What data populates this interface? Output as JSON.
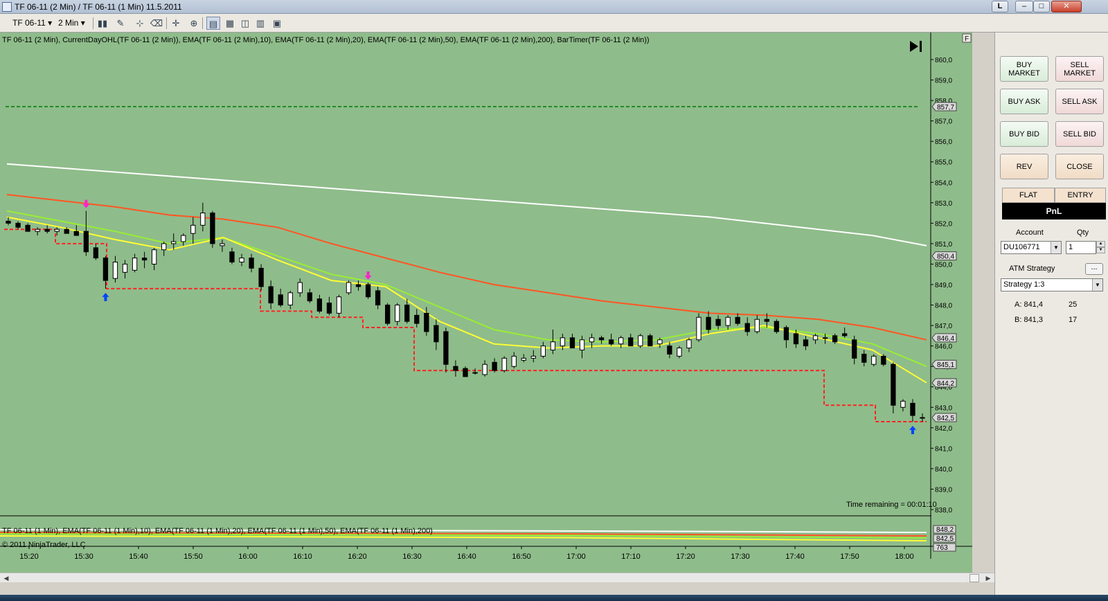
{
  "window": {
    "title": "TF 06-11 (2 Min) / TF 06-11 (1 Min)  11.5.2011",
    "lang_badge": "L",
    "btn_min": "–",
    "btn_max": "□",
    "btn_close": "✕"
  },
  "toolbar": {
    "instrument": "TF 06-11",
    "interval": "2 Min",
    "icons": [
      "bar-type-icon",
      "draw-tool-icon",
      "pin-icon",
      "clear-icon",
      "crosshair-icon",
      "zoom-icon",
      "chart-trader-icon",
      "data-box-icon",
      "strategies-icon",
      "properties-icon",
      "templates-icon"
    ]
  },
  "chart": {
    "indicator_label": "TF 06-11 (2 Min), CurrentDayOHL(TF 06-11 (2 Min)), EMA(TF 06-11 (2 Min),10), EMA(TF 06-11 (2 Min),20), EMA(TF 06-11 (2 Min),50), EMA(TF 06-11 (2 Min),200), BarTimer(TF 06-11 (2 Min))",
    "sub_label": "TF 06-11 (1 Min), EMA(TF 06-11 (1 Min),10), EMA(TF 06-11 (1 Min),20), EMA(TF 06-11 (1 Min),50), EMA(TF 06-11 (1 Min),200)",
    "copyright": "© 2011 NinjaTrader, LLC",
    "timer": "Time remaining = 00:01:10",
    "panel_flag": "F",
    "colors": {
      "background": "#8fbc8b",
      "ema10": "#ffff33",
      "ema20": "#99ee33",
      "ema50": "#ff5522",
      "ema200": "#ffffff",
      "day_high": "#228b22",
      "day_low": "#ff2222",
      "buy_arrow": "#0044ff",
      "sell_arrow": "#ff22cc"
    }
  },
  "chart_data": {
    "type": "candlestick",
    "y_axis": {
      "range": [
        837.5,
        860.5
      ],
      "ticks": [
        "860,0",
        "859,0",
        "858,0",
        "857,0",
        "856,0",
        "855,0",
        "854,0",
        "853,0",
        "852,0",
        "851,0",
        "850,0",
        "849,0",
        "848,0",
        "847,0",
        "846,0",
        "845,0",
        "844,0",
        "843,0",
        "842,0",
        "841,0",
        "840,0",
        "839,0",
        "838,0"
      ]
    },
    "price_markers": [
      {
        "label": "857,7",
        "value": 857.7
      },
      {
        "label": "850,4",
        "value": 850.4
      },
      {
        "label": "846,4",
        "value": 846.4
      },
      {
        "label": "845,1",
        "value": 845.1
      },
      {
        "label": "844,2",
        "value": 844.2
      },
      {
        "label": "842,5",
        "value": 842.5
      }
    ],
    "sub_markers": [
      {
        "label": "848,2"
      },
      {
        "label": "842,5"
      },
      {
        "label": "763"
      }
    ],
    "x_axis": {
      "ticks": [
        "15:20",
        "15:30",
        "15:40",
        "15:50",
        "16:00",
        "16:10",
        "16:20",
        "16:30",
        "16:40",
        "16:50",
        "17:00",
        "17:10",
        "17:20",
        "17:30",
        "17:40",
        "17:50",
        "18:00"
      ]
    },
    "series": [
      {
        "name": "EMA(TF 06-11 (2 Min),200)",
        "values": [
          854.9,
          854.7,
          854.5,
          854.3,
          854.1,
          853.9,
          853.7,
          853.5,
          853.3,
          853.1,
          852.9,
          852.7,
          852.5,
          852.3,
          852.0,
          851.7,
          851.4,
          850.9
        ]
      },
      {
        "name": "EMA(TF 06-11 (2 Min),50)",
        "values": [
          853.4,
          853.1,
          852.8,
          852.4,
          852.2,
          851.8,
          851.0,
          850.3,
          849.6,
          849.0,
          848.6,
          848.2,
          847.9,
          847.6,
          847.5,
          847.3,
          846.9,
          846.3
        ]
      },
      {
        "name": "EMA(TF 06-11 (2 Min),20)",
        "values": [
          852.6,
          852.1,
          851.6,
          851.0,
          851.3,
          850.4,
          849.5,
          849.0,
          847.9,
          846.8,
          846.3,
          846.2,
          846.3,
          846.8,
          846.9,
          846.6,
          846.1,
          845.0
        ]
      },
      {
        "name": "EMA(TF 06-11 (2 Min),10)",
        "values": [
          852.3,
          851.8,
          851.2,
          850.7,
          851.3,
          850.2,
          849.2,
          848.9,
          847.2,
          846.1,
          845.9,
          846.0,
          846.0,
          846.6,
          847.0,
          846.4,
          845.8,
          844.2
        ]
      },
      {
        "name": "CurrentDayHigh",
        "values": [
          857.7
        ]
      },
      {
        "name": "CurrentDayLow",
        "values": [
          851.7,
          851.0,
          848.8,
          848.8,
          848.8,
          847.7,
          847.4,
          846.9,
          844.8,
          844.8,
          844.8,
          844.8,
          844.8,
          844.8,
          844.8,
          844.8,
          843.1,
          842.3
        ]
      }
    ],
    "candles": [
      {
        "o": 852.1,
        "h": 852.3,
        "l": 851.9,
        "c": 852.0
      },
      {
        "o": 852.0,
        "h": 852.1,
        "l": 851.7,
        "c": 851.8
      },
      {
        "o": 851.9,
        "h": 852.0,
        "l": 851.6,
        "c": 851.6
      },
      {
        "o": 851.6,
        "h": 851.8,
        "l": 851.4,
        "c": 851.7
      },
      {
        "o": 851.7,
        "h": 851.9,
        "l": 851.5,
        "c": 851.6
      },
      {
        "o": 851.6,
        "h": 851.8,
        "l": 851.4,
        "c": 851.7
      },
      {
        "o": 851.7,
        "h": 851.8,
        "l": 851.5,
        "c": 851.5
      },
      {
        "o": 851.6,
        "h": 851.9,
        "l": 851.4,
        "c": 851.4
      },
      {
        "o": 851.6,
        "h": 852.6,
        "l": 850.4,
        "c": 850.6
      },
      {
        "o": 850.8,
        "h": 851.0,
        "l": 850.2,
        "c": 850.3
      },
      {
        "o": 850.3,
        "h": 850.4,
        "l": 848.8,
        "c": 849.2
      },
      {
        "o": 849.3,
        "h": 850.4,
        "l": 849.1,
        "c": 850.1
      },
      {
        "o": 849.6,
        "h": 850.2,
        "l": 849.3,
        "c": 850.0
      },
      {
        "o": 849.7,
        "h": 850.5,
        "l": 849.6,
        "c": 850.3
      },
      {
        "o": 850.3,
        "h": 850.6,
        "l": 849.8,
        "c": 850.2
      },
      {
        "o": 850.0,
        "h": 850.8,
        "l": 849.7,
        "c": 850.7
      },
      {
        "o": 850.7,
        "h": 851.1,
        "l": 850.4,
        "c": 851.0
      },
      {
        "o": 851.0,
        "h": 851.5,
        "l": 850.7,
        "c": 851.1
      },
      {
        "o": 851.1,
        "h": 851.5,
        "l": 850.9,
        "c": 851.4
      },
      {
        "o": 851.5,
        "h": 852.3,
        "l": 851.0,
        "c": 851.9
      },
      {
        "o": 851.9,
        "h": 853.0,
        "l": 851.6,
        "c": 852.5
      },
      {
        "o": 852.5,
        "h": 852.6,
        "l": 850.8,
        "c": 851.0
      },
      {
        "o": 850.9,
        "h": 851.2,
        "l": 850.6,
        "c": 851.0
      },
      {
        "o": 850.6,
        "h": 850.8,
        "l": 850.0,
        "c": 850.1
      },
      {
        "o": 850.1,
        "h": 850.5,
        "l": 849.9,
        "c": 850.3
      },
      {
        "o": 850.3,
        "h": 850.5,
        "l": 849.6,
        "c": 849.8
      },
      {
        "o": 849.8,
        "h": 850.0,
        "l": 848.7,
        "c": 848.9
      },
      {
        "o": 848.9,
        "h": 849.2,
        "l": 847.8,
        "c": 848.1
      },
      {
        "o": 848.5,
        "h": 848.8,
        "l": 847.9,
        "c": 848.0
      },
      {
        "o": 848.0,
        "h": 848.7,
        "l": 847.8,
        "c": 848.6
      },
      {
        "o": 848.6,
        "h": 849.3,
        "l": 848.4,
        "c": 849.1
      },
      {
        "o": 848.6,
        "h": 848.8,
        "l": 848.1,
        "c": 848.2
      },
      {
        "o": 848.3,
        "h": 848.5,
        "l": 847.6,
        "c": 847.7
      },
      {
        "o": 848.1,
        "h": 848.4,
        "l": 847.5,
        "c": 847.6
      },
      {
        "o": 847.6,
        "h": 848.5,
        "l": 847.4,
        "c": 848.4
      },
      {
        "o": 848.6,
        "h": 849.2,
        "l": 848.5,
        "c": 849.1
      },
      {
        "o": 849.0,
        "h": 849.2,
        "l": 848.7,
        "c": 848.9
      },
      {
        "o": 849.0,
        "h": 849.1,
        "l": 848.3,
        "c": 848.4
      },
      {
        "o": 848.7,
        "h": 848.9,
        "l": 847.8,
        "c": 848.0
      },
      {
        "o": 848.0,
        "h": 848.1,
        "l": 847.0,
        "c": 847.1
      },
      {
        "o": 847.2,
        "h": 848.1,
        "l": 847.0,
        "c": 848.0
      },
      {
        "o": 848.0,
        "h": 848.3,
        "l": 847.1,
        "c": 847.2
      },
      {
        "o": 847.5,
        "h": 847.8,
        "l": 846.9,
        "c": 847.1
      },
      {
        "o": 847.6,
        "h": 847.9,
        "l": 846.5,
        "c": 846.7
      },
      {
        "o": 847.0,
        "h": 847.3,
        "l": 845.8,
        "c": 846.2
      },
      {
        "o": 846.7,
        "h": 846.9,
        "l": 844.7,
        "c": 845.1
      },
      {
        "o": 845.0,
        "h": 845.3,
        "l": 844.5,
        "c": 844.8
      },
      {
        "o": 844.9,
        "h": 845.0,
        "l": 844.5,
        "c": 844.5
      },
      {
        "o": 844.7,
        "h": 844.9,
        "l": 844.6,
        "c": 844.7
      },
      {
        "o": 844.6,
        "h": 845.3,
        "l": 844.5,
        "c": 845.1
      },
      {
        "o": 845.2,
        "h": 845.4,
        "l": 844.7,
        "c": 844.8
      },
      {
        "o": 844.8,
        "h": 845.5,
        "l": 844.7,
        "c": 845.4
      },
      {
        "o": 845.0,
        "h": 845.7,
        "l": 844.9,
        "c": 845.5
      },
      {
        "o": 845.3,
        "h": 845.6,
        "l": 845.2,
        "c": 845.4
      },
      {
        "o": 845.4,
        "h": 845.8,
        "l": 845.2,
        "c": 845.5
      },
      {
        "o": 845.5,
        "h": 846.2,
        "l": 845.4,
        "c": 846.0
      },
      {
        "o": 845.8,
        "h": 846.8,
        "l": 845.6,
        "c": 846.2
      },
      {
        "o": 846.0,
        "h": 846.6,
        "l": 845.8,
        "c": 846.4
      },
      {
        "o": 846.4,
        "h": 846.6,
        "l": 845.9,
        "c": 845.9
      },
      {
        "o": 845.8,
        "h": 846.5,
        "l": 845.4,
        "c": 846.3
      },
      {
        "o": 846.2,
        "h": 846.6,
        "l": 845.9,
        "c": 846.4
      },
      {
        "o": 846.4,
        "h": 846.5,
        "l": 846.1,
        "c": 846.3
      },
      {
        "o": 846.3,
        "h": 846.6,
        "l": 846.0,
        "c": 846.1
      },
      {
        "o": 846.1,
        "h": 846.5,
        "l": 845.9,
        "c": 846.4
      },
      {
        "o": 846.4,
        "h": 846.6,
        "l": 846.0,
        "c": 846.0
      },
      {
        "o": 846.0,
        "h": 846.6,
        "l": 845.9,
        "c": 846.5
      },
      {
        "o": 846.5,
        "h": 846.6,
        "l": 846.0,
        "c": 846.0
      },
      {
        "o": 846.1,
        "h": 846.4,
        "l": 845.9,
        "c": 846.3
      },
      {
        "o": 846.0,
        "h": 846.2,
        "l": 845.4,
        "c": 845.6
      },
      {
        "o": 845.5,
        "h": 846.0,
        "l": 845.4,
        "c": 845.9
      },
      {
        "o": 845.9,
        "h": 846.4,
        "l": 845.7,
        "c": 846.3
      },
      {
        "o": 846.3,
        "h": 847.6,
        "l": 846.2,
        "c": 847.4
      },
      {
        "o": 847.4,
        "h": 847.7,
        "l": 846.6,
        "c": 846.8
      },
      {
        "o": 847.3,
        "h": 847.5,
        "l": 846.8,
        "c": 847.0
      },
      {
        "o": 847.0,
        "h": 847.5,
        "l": 846.8,
        "c": 847.4
      },
      {
        "o": 847.4,
        "h": 847.6,
        "l": 847.0,
        "c": 847.1
      },
      {
        "o": 847.1,
        "h": 847.4,
        "l": 846.5,
        "c": 846.7
      },
      {
        "o": 846.7,
        "h": 847.5,
        "l": 846.6,
        "c": 847.3
      },
      {
        "o": 847.3,
        "h": 847.6,
        "l": 846.9,
        "c": 847.2
      },
      {
        "o": 847.2,
        "h": 847.3,
        "l": 846.6,
        "c": 846.7
      },
      {
        "o": 846.9,
        "h": 847.0,
        "l": 845.9,
        "c": 846.3
      },
      {
        "o": 846.6,
        "h": 846.8,
        "l": 845.9,
        "c": 846.1
      },
      {
        "o": 846.3,
        "h": 846.5,
        "l": 845.8,
        "c": 846.0
      },
      {
        "o": 846.3,
        "h": 846.6,
        "l": 846.1,
        "c": 846.5
      },
      {
        "o": 846.4,
        "h": 846.6,
        "l": 846.1,
        "c": 846.4
      },
      {
        "o": 846.5,
        "h": 846.6,
        "l": 846.1,
        "c": 846.2
      },
      {
        "o": 846.6,
        "h": 846.9,
        "l": 846.4,
        "c": 846.5
      },
      {
        "o": 846.3,
        "h": 846.5,
        "l": 845.1,
        "c": 845.4
      },
      {
        "o": 845.6,
        "h": 845.8,
        "l": 845.0,
        "c": 845.2
      },
      {
        "o": 845.1,
        "h": 845.6,
        "l": 845.0,
        "c": 845.5
      },
      {
        "o": 845.5,
        "h": 845.6,
        "l": 845.0,
        "c": 845.1
      },
      {
        "o": 845.1,
        "h": 845.2,
        "l": 842.7,
        "c": 843.1
      },
      {
        "o": 843.0,
        "h": 843.4,
        "l": 842.8,
        "c": 843.3
      },
      {
        "o": 843.2,
        "h": 843.4,
        "l": 842.3,
        "c": 842.6
      },
      {
        "o": 842.5,
        "h": 842.7,
        "l": 842.3,
        "c": 842.5
      }
    ],
    "signals": [
      {
        "type": "sell",
        "bar": 8
      },
      {
        "type": "sell",
        "bar": 37
      },
      {
        "type": "buy",
        "bar": 10
      },
      {
        "type": "buy",
        "bar": 93
      }
    ]
  },
  "panel": {
    "buttons": {
      "buy_market": "BUY MARKET",
      "sell_market": "SELL MARKET",
      "buy_ask": "BUY ASK",
      "sell_ask": "SELL ASK",
      "buy_bid": "BUY BID",
      "sell_bid": "SELL BID",
      "rev": "REV",
      "close": "CLOSE"
    },
    "position": "FLAT",
    "entry": "ENTRY",
    "pnl": "PnL",
    "account_label": "Account",
    "qty_label": "Qty",
    "account": "DU106771",
    "qty": "1",
    "atm_label": "ATM Strategy",
    "atm_dots": "...",
    "atm_strategy": "Strategy 1:3",
    "ask_label": "A: 841,4",
    "ask_size": "25",
    "bid_label": "B: 841,3",
    "bid_size": "17"
  }
}
